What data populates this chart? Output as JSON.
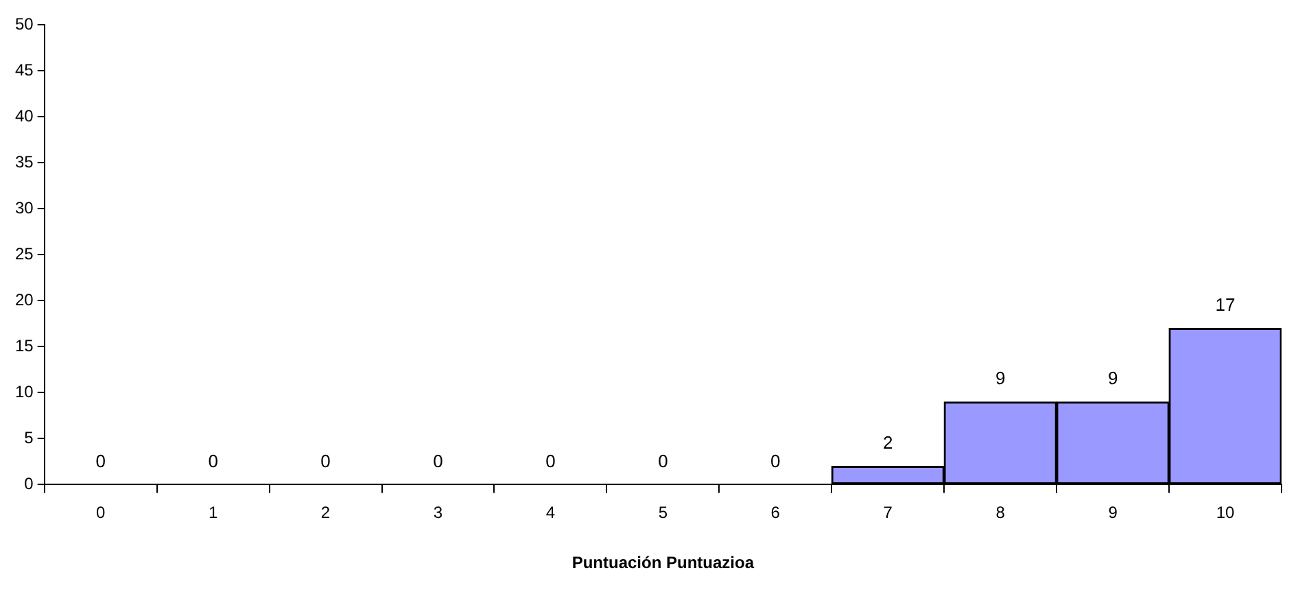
{
  "chart_data": {
    "type": "bar",
    "xlabel": "Puntuación Puntuazioa",
    "categories": [
      "0",
      "1",
      "2",
      "3",
      "4",
      "5",
      "6",
      "7",
      "8",
      "9",
      "10"
    ],
    "values": [
      0,
      0,
      0,
      0,
      0,
      0,
      0,
      2,
      9,
      9,
      17
    ],
    "color": "#9999ff",
    "ylim": [
      0,
      50
    ],
    "yticks": [
      0,
      5,
      10,
      15,
      20,
      25,
      30,
      35,
      40,
      45,
      50
    ],
    "grid": false,
    "legend": false,
    "data_labels": true
  }
}
